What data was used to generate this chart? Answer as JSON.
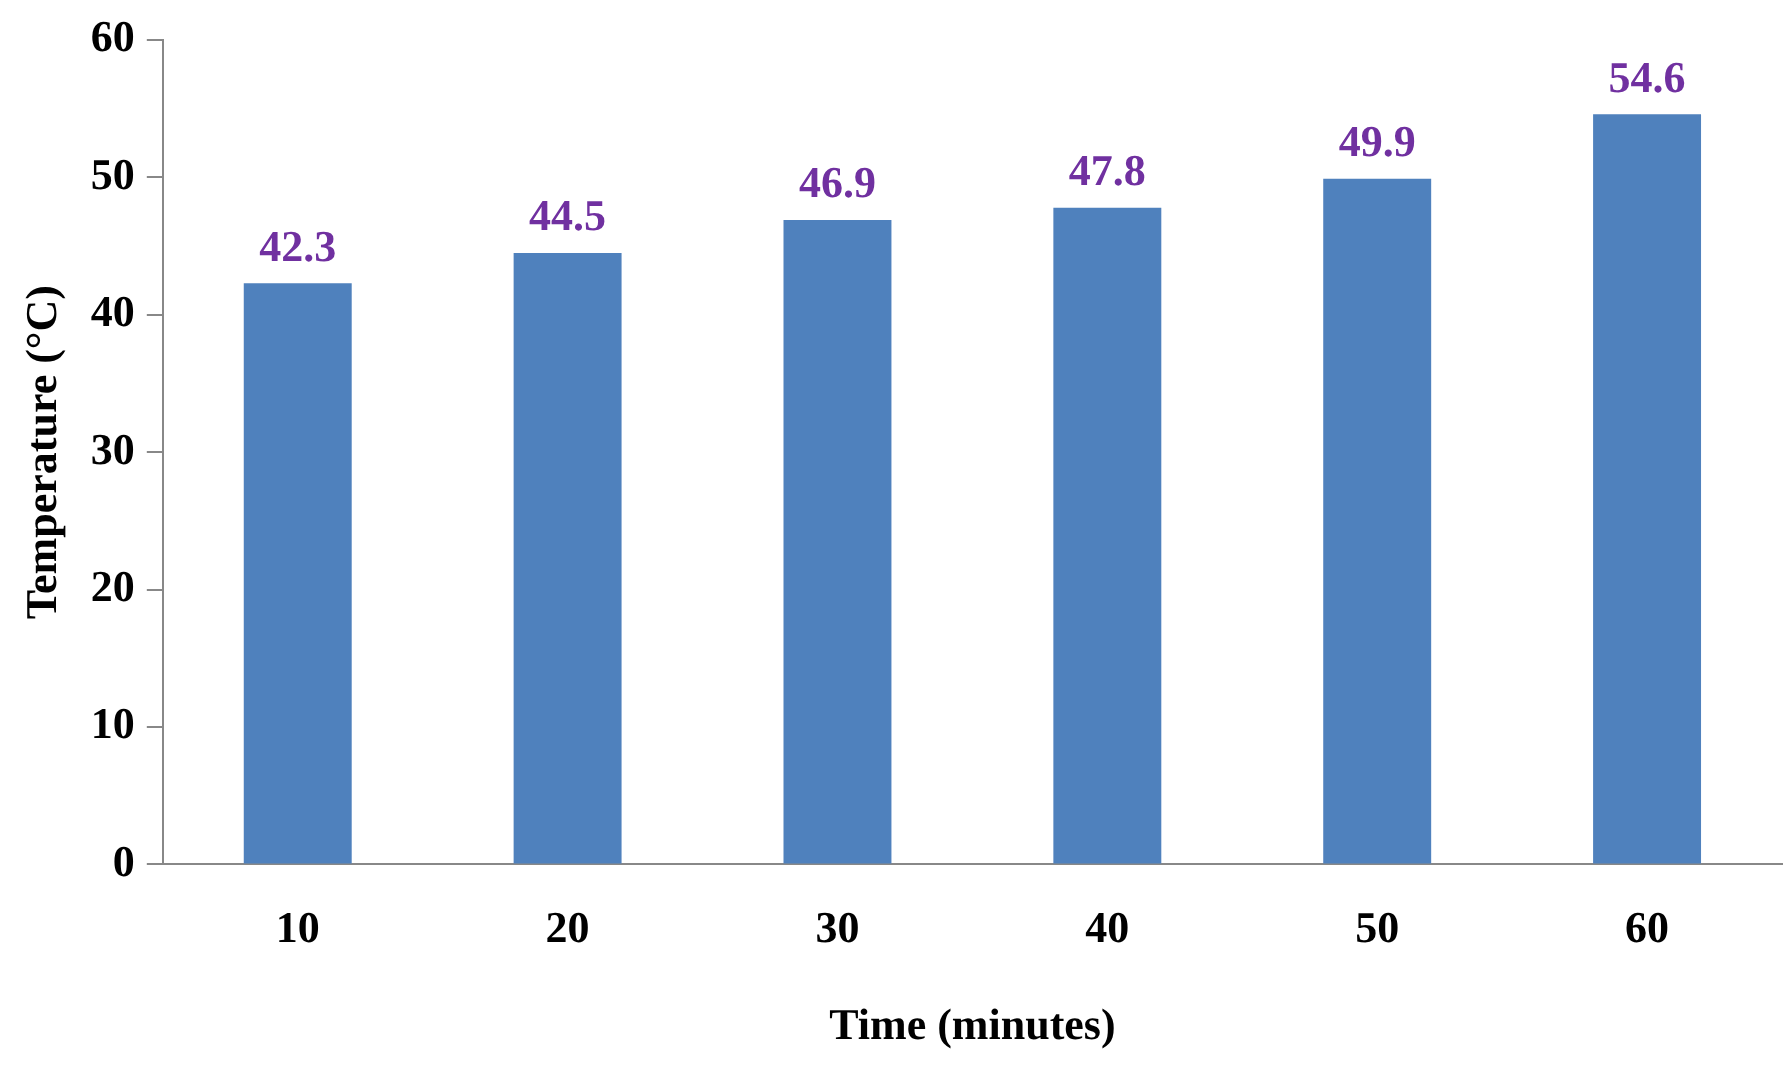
{
  "chart_data": {
    "type": "bar",
    "xlabel": "Time (minutes)",
    "ylabel": "Temperature (°C)",
    "categories": [
      "10",
      "20",
      "30",
      "40",
      "50",
      "60"
    ],
    "values": [
      42.3,
      44.5,
      46.9,
      47.8,
      49.9,
      54.6
    ],
    "color": "#4f81bd",
    "ylim": [
      0,
      60
    ],
    "yticks": [
      0,
      10,
      20,
      30,
      40,
      50,
      60
    ],
    "grid": false,
    "legend": false,
    "data_labels": true
  }
}
